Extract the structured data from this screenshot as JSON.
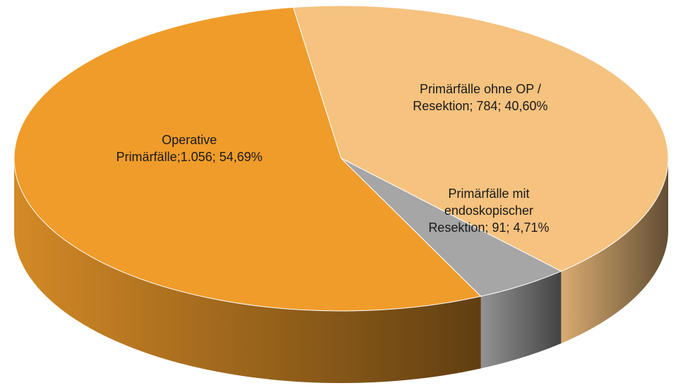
{
  "chart_data": {
    "type": "pie3d",
    "values": [
      1056,
      784,
      91
    ],
    "value_labels": [
      [
        "Operative",
        "Primärfälle;1.056; 54,69%"
      ],
      [
        "Primärfälle ohne OP /",
        "Resektion; 784; 40,60%"
      ],
      [
        "Primärfälle mit",
        "endoskopischer",
        "Resektion; 91; 4,71%"
      ]
    ],
    "colors": [
      "#f09c2b",
      "#f5c27f",
      "#a6a6a6"
    ]
  }
}
